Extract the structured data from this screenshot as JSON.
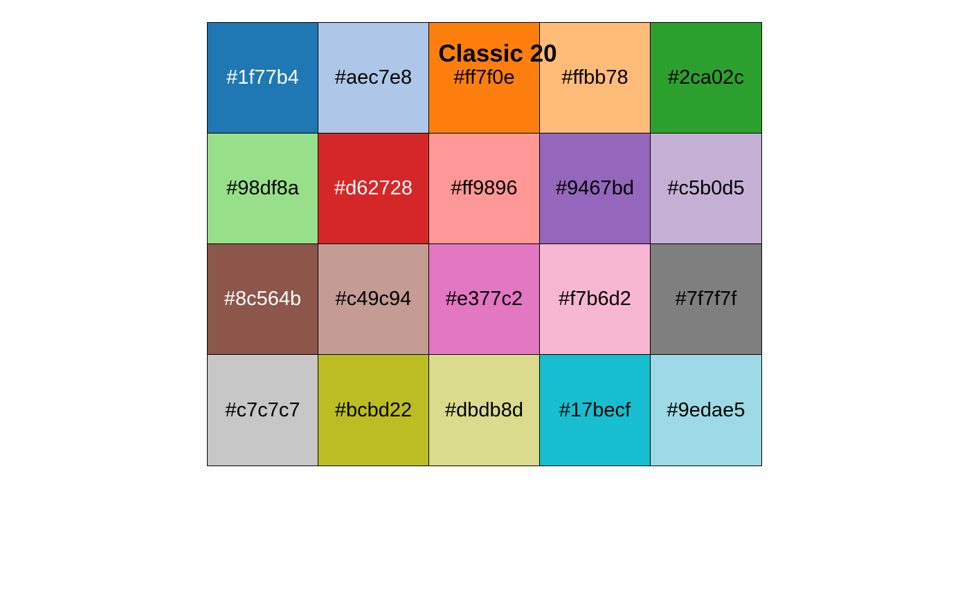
{
  "title": "Classic 20",
  "swatches": [
    {
      "hex": "#1f77b4",
      "label": "#1f77b4",
      "text_color": "#ffffff"
    },
    {
      "hex": "#aec7e8",
      "label": "#aec7e8",
      "text_color": "#000000"
    },
    {
      "hex": "#ff7f0e",
      "label": "#ff7f0e",
      "text_color": "#000000"
    },
    {
      "hex": "#ffbb78",
      "label": "#ffbb78",
      "text_color": "#000000"
    },
    {
      "hex": "#2ca02c",
      "label": "#2ca02c",
      "text_color": "#000000"
    },
    {
      "hex": "#98df8a",
      "label": "#98df8a",
      "text_color": "#000000"
    },
    {
      "hex": "#d62728",
      "label": "#d62728",
      "text_color": "#ffffff"
    },
    {
      "hex": "#ff9896",
      "label": "#ff9896",
      "text_color": "#000000"
    },
    {
      "hex": "#9467bd",
      "label": "#9467bd",
      "text_color": "#000000"
    },
    {
      "hex": "#c5b0d5",
      "label": "#c5b0d5",
      "text_color": "#000000"
    },
    {
      "hex": "#8c564b",
      "label": "#8c564b",
      "text_color": "#ffffff"
    },
    {
      "hex": "#c49c94",
      "label": "#c49c94",
      "text_color": "#000000"
    },
    {
      "hex": "#e377c2",
      "label": "#e377c2",
      "text_color": "#000000"
    },
    {
      "hex": "#f7b6d2",
      "label": "#f7b6d2",
      "text_color": "#000000"
    },
    {
      "hex": "#7f7f7f",
      "label": "#7f7f7f",
      "text_color": "#000000"
    },
    {
      "hex": "#c7c7c7",
      "label": "#c7c7c7",
      "text_color": "#000000"
    },
    {
      "hex": "#bcbd22",
      "label": "#bcbd22",
      "text_color": "#000000"
    },
    {
      "hex": "#dbdb8d",
      "label": "#dbdb8d",
      "text_color": "#000000"
    },
    {
      "hex": "#17becf",
      "label": "#17becf",
      "text_color": "#000000"
    },
    {
      "hex": "#9edae5",
      "label": "#9edae5",
      "text_color": "#000000"
    }
  ]
}
